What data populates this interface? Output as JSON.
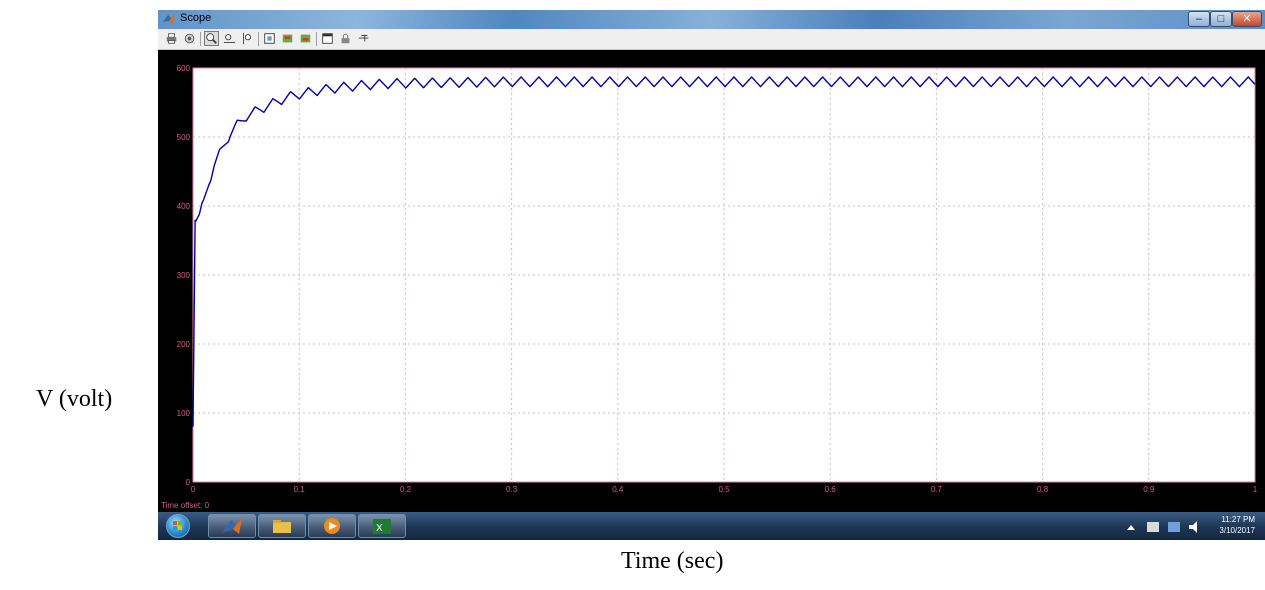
{
  "window": {
    "title": "Scope"
  },
  "toolbar": {
    "icons": [
      "print-icon",
      "parameters-icon",
      "zoom-icon",
      "zoom-x-icon",
      "zoom-y-icon",
      "autoscale-icon",
      "save-axes-icon",
      "restore-axes-icon",
      "floating-scope-icon",
      "lock-axes-icon",
      "signal-selection-icon"
    ]
  },
  "chart_data": {
    "type": "line",
    "title": "",
    "xlabel": "Time (sec)",
    "ylabel": "V (volt)",
    "xlim": [
      0,
      1
    ],
    "ylim": [
      0,
      600
    ],
    "xticks": [
      "0",
      "0.1",
      "0.2",
      "0.3",
      "0.4",
      "0.5",
      "0.6",
      "0.7",
      "0.8",
      "0.9",
      "1"
    ],
    "yticks": [
      "0",
      "100",
      "200",
      "300",
      "400",
      "500",
      "600"
    ],
    "grid": true,
    "series": [
      {
        "color": "#0000a0",
        "x": [
          0,
          0.002,
          0.006,
          0.01,
          0.015,
          0.02,
          0.025,
          0.03,
          0.035,
          0.04,
          0.045,
          0.05,
          0.06,
          0.07,
          0.08,
          0.09,
          0.1,
          0.12,
          0.14,
          0.16,
          0.18,
          0.2,
          0.25,
          0.3,
          0.4,
          0.5,
          0.6,
          0.7,
          0.8,
          0.9,
          1.0
        ],
        "y": [
          80,
          380,
          385,
          405,
          435,
          460,
          475,
          490,
          505,
          515,
          522,
          530,
          538,
          545,
          552,
          558,
          562,
          568,
          572,
          575,
          577,
          578,
          579,
          580,
          580,
          580,
          580,
          580,
          580,
          580,
          580
        ],
        "ripple_amplitude": 7,
        "ripple_period": 0.0167
      }
    ],
    "time_offset_label": "Time offset:",
    "time_offset_value": "0"
  },
  "taskbar": {
    "apps": [
      "matlab-icon",
      "file-explorer-icon",
      "media-player-icon",
      "excel-icon"
    ],
    "tray_icons": [
      "show-hidden-icons-icon",
      "action-center-flag-icon",
      "network-icon",
      "volume-icon"
    ],
    "clock_time": "11:27 PM",
    "clock_date": "3/10/2017"
  },
  "colors": {
    "trace": "#0000a0",
    "axes": "#e87fa6",
    "grid": "#d9b7c4"
  }
}
